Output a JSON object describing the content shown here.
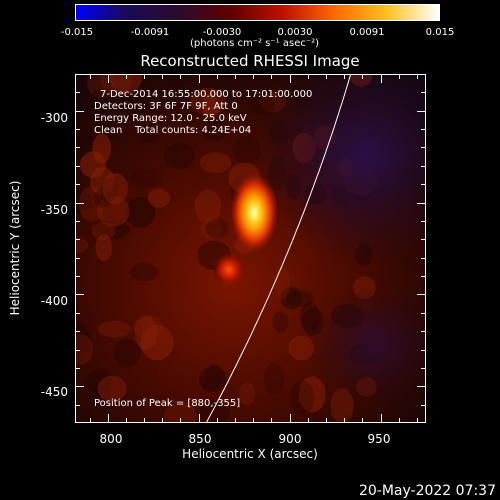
{
  "colorbar": {
    "ticks": [
      "-0.015",
      "-0.0091",
      "-0.0030",
      "0.0030",
      "0.0091",
      "0.015"
    ],
    "unit_label": "(photons cm⁻² s⁻¹ asec⁻²)",
    "colors": [
      "#0000ff",
      "#1a0a55",
      "#2c0a2c",
      "#600000",
      "#c01000",
      "#ff6a00",
      "#ffc020",
      "#ffffff"
    ]
  },
  "title": "Reconstructed RHESSI Image",
  "annotations": {
    "time_range": "7-Dec-2014 16:55:00.000 to 17:01:00.000",
    "detectors": "Detectors: 3F 6F 7F 9F, Att 0",
    "energy": "Energy Range: 12.0 - 25.0 keV",
    "clean": "Clean    Total counts: 4.24E+04",
    "peak": "Position of Peak = [880,-355]"
  },
  "axes": {
    "xlabel": "Heliocentric X (arcsec)",
    "ylabel": "Heliocentric Y (arcsec)",
    "xticks": [
      "800",
      "850",
      "900",
      "950"
    ],
    "yticks": [
      "-300",
      "-350",
      "-400",
      "-450"
    ],
    "xlim": [
      782,
      975
    ],
    "ylim": [
      -470,
      -280
    ]
  },
  "image": {
    "peak_position": [
      880,
      -355
    ],
    "secondary_source": [
      866,
      -386
    ],
    "limb_color": "#ffffff"
  },
  "footer": {
    "timestamp": "20-May-2022 07:37"
  }
}
